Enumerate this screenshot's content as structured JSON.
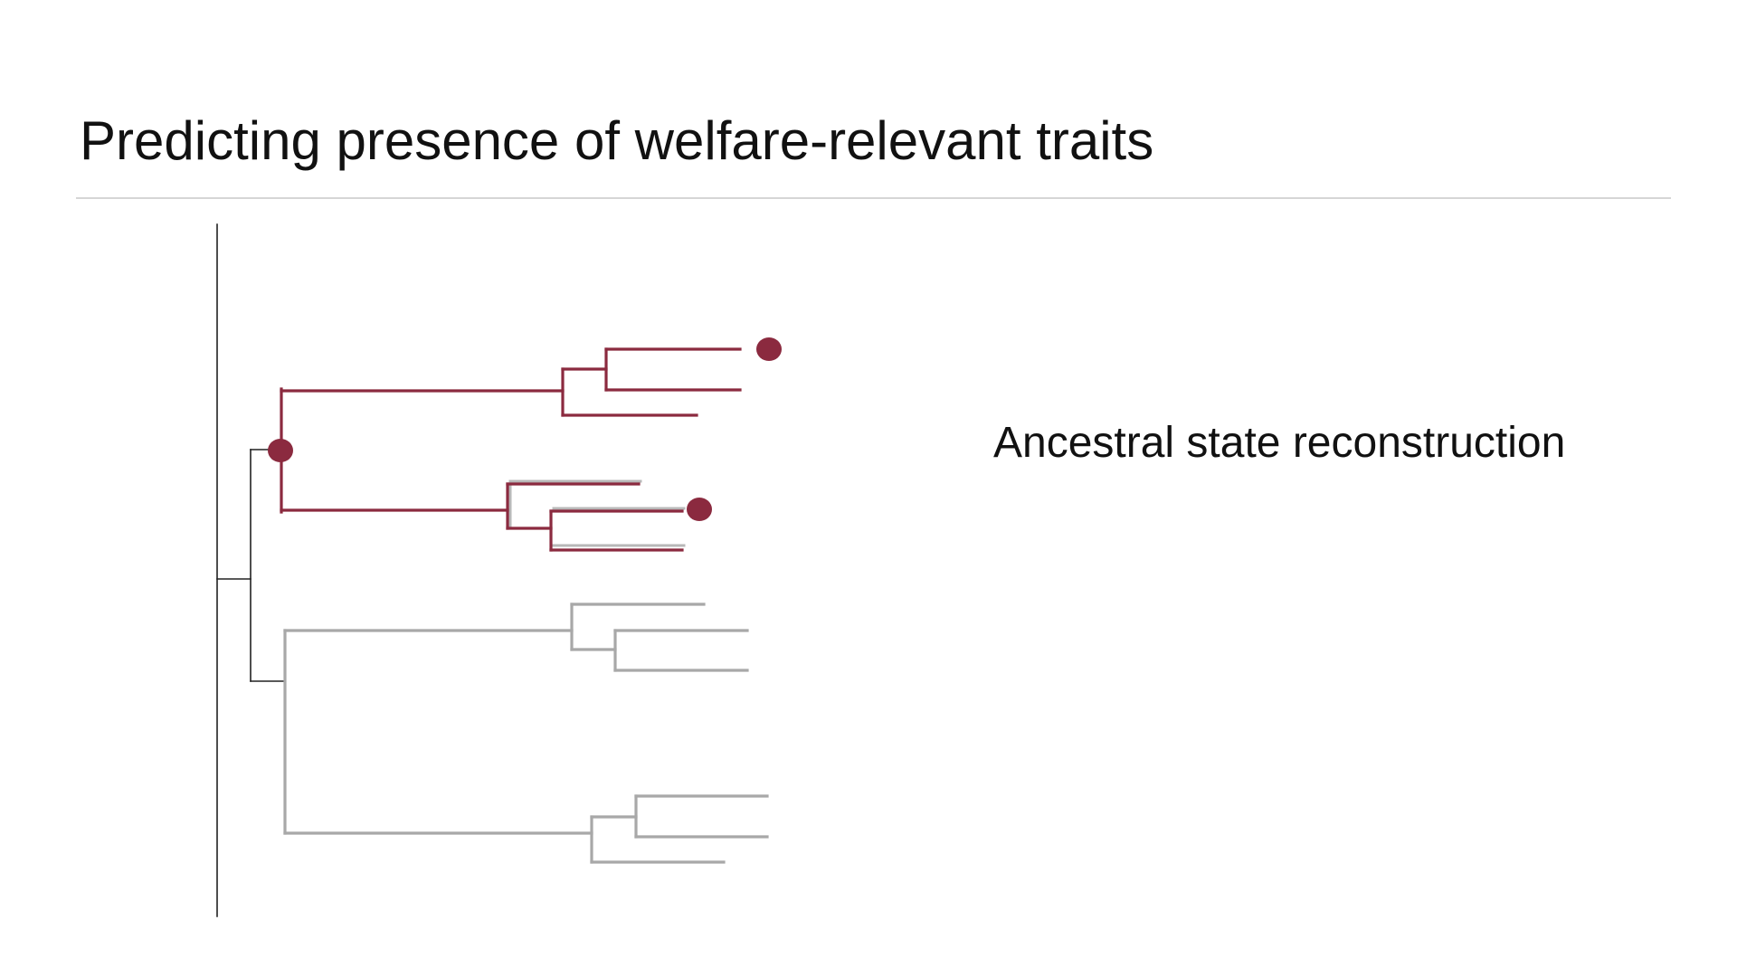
{
  "slide": {
    "title": "Predicting presence of welfare-relevant traits",
    "annotation": "Ancestral state reconstruction"
  },
  "colors": {
    "background": "#ffffff",
    "text": "#111111",
    "rule": "#d6d6d6",
    "trait_present": "#8b2a3f",
    "trait_absent": "#a8a8a8",
    "root_axis": "#222222"
  },
  "phylogeny": {
    "tips_with_trait_observed": 2,
    "reconstructed_ancestor_with_trait": 1,
    "clades_with_trait": 2,
    "clades_without_trait": 2
  }
}
